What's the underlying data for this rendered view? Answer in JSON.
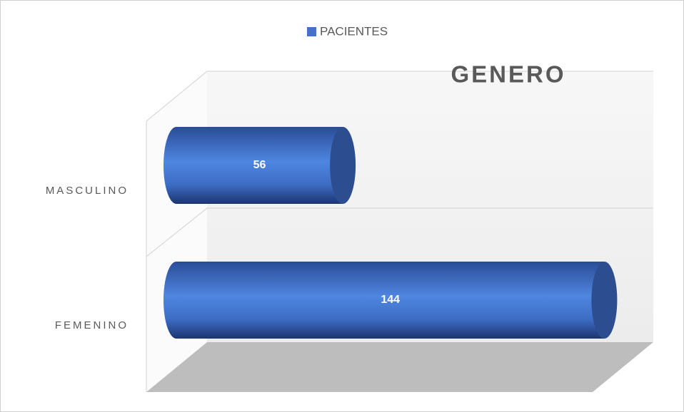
{
  "chart_data": {
    "type": "bar",
    "orientation": "horizontal",
    "title": "GENERO",
    "categories": [
      "MASCULINO",
      "FEMENINO"
    ],
    "series": [
      {
        "name": "PACIENTES",
        "color": "#4472c4",
        "values": [
          56,
          144
        ]
      }
    ],
    "xlim": [
      0,
      160
    ],
    "legend": "top"
  }
}
